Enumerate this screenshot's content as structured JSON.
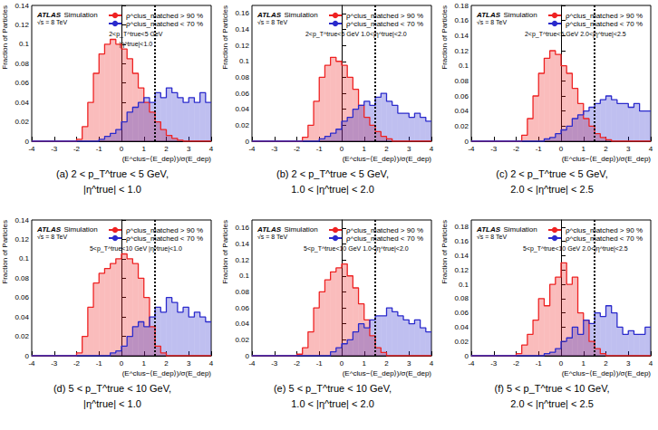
{
  "chart_data": [
    {
      "type": "histogram",
      "experiment": "ATLAS",
      "experiment_label": "Simulation",
      "energy": "√s = 8 TeV",
      "label": [
        "2<p_T^true<5 GeV",
        "|η^true|<1.0"
      ],
      "caption": [
        "(a) 2 < p_T^true < 5 GeV,",
        "|η^true| < 1.0"
      ],
      "x_label": "(E^clus−⟨E_dep⟩)/σ(E_dep)",
      "y_label": "Fraction of Particles",
      "cut": 1.5,
      "bins": [
        -4,
        -3.75,
        -3.5,
        -3.25,
        -3,
        -2.75,
        -2.5,
        -2.25,
        -2,
        -1.75,
        -1.5,
        -1.25,
        -1,
        -0.75,
        -0.5,
        -0.25,
        0,
        0.25,
        0.5,
        0.75,
        1,
        1.25,
        1.5,
        1.75,
        2,
        2.25,
        2.5,
        2.75,
        3,
        3.25,
        3.5,
        3.75,
        4
      ],
      "series": [
        {
          "name": "ρ^clus_matched > 90 %",
          "color": "#ee2222",
          "values": [
            0,
            0,
            0,
            0,
            0,
            0,
            0,
            0,
            0.002,
            0.015,
            0.04,
            0.07,
            0.09,
            0.1,
            0.105,
            0.1,
            0.095,
            0.085,
            0.07,
            0.055,
            0.04,
            0.03,
            0.02,
            0.012,
            0.006,
            0.003,
            0.001,
            0,
            0,
            0,
            0,
            0
          ]
        },
        {
          "name": "ρ^clus_matched < 70 %",
          "color": "#2a2acc",
          "values": [
            0,
            0,
            0,
            0,
            0,
            0,
            0,
            0,
            0,
            0,
            0,
            0,
            0.002,
            0.005,
            0.008,
            0.012,
            0.02,
            0.03,
            0.035,
            0.04,
            0.045,
            0.04,
            0.05,
            0.045,
            0.055,
            0.05,
            0.045,
            0.04,
            0.045,
            0.04,
            0.05,
            0.04
          ]
        }
      ],
      "xlim": [
        -4,
        4
      ],
      "xticks": [
        -4,
        -3,
        -2,
        -1,
        0,
        1,
        2,
        3,
        4
      ],
      "ylim": [
        0,
        0.14
      ],
      "yticks": [
        0,
        0.02,
        0.04,
        0.06,
        0.08,
        0.1,
        0.12,
        0.14
      ],
      "legend": "upper right"
    },
    {
      "type": "histogram",
      "experiment": "ATLAS",
      "experiment_label": "Simulation",
      "energy": "√s = 8 TeV",
      "label": [
        "2<p_T^true<5 GeV 1.0<|η^true|<2.0"
      ],
      "caption": [
        "(b) 2 < p_T^true < 5 GeV,",
        "1.0 < |η^true| < 2.0"
      ],
      "x_label": "(E^clus−⟨E_dep⟩)/σ(E_dep)",
      "y_label": "Fraction of Particles",
      "cut": 1.5,
      "bins": [
        -4,
        -3.75,
        -3.5,
        -3.25,
        -3,
        -2.75,
        -2.5,
        -2.25,
        -2,
        -1.75,
        -1.5,
        -1.25,
        -1,
        -0.75,
        -0.5,
        -0.25,
        0,
        0.25,
        0.5,
        0.75,
        1,
        1.25,
        1.5,
        1.75,
        2,
        2.25,
        2.5,
        2.75,
        3,
        3.25,
        3.5,
        3.75,
        4
      ],
      "series": [
        {
          "name": "ρ^clus_matched > 90 %",
          "color": "#ee2222",
          "values": [
            0,
            0,
            0,
            0,
            0,
            0,
            0,
            0,
            0,
            0.005,
            0.02,
            0.05,
            0.08,
            0.095,
            0.105,
            0.1,
            0.095,
            0.08,
            0.065,
            0.045,
            0.03,
            0.02,
            0.012,
            0.006,
            0.003,
            0,
            0,
            0,
            0,
            0,
            0,
            0
          ]
        },
        {
          "name": "ρ^clus_matched < 70 %",
          "color": "#2a2acc",
          "values": [
            0,
            0,
            0,
            0,
            0,
            0,
            0,
            0,
            0,
            0,
            0,
            0,
            0.003,
            0.006,
            0.01,
            0.015,
            0.025,
            0.03,
            0.04,
            0.045,
            0.05,
            0.045,
            0.055,
            0.06,
            0.05,
            0.045,
            0.035,
            0.035,
            0.03,
            0.035,
            0.03,
            0.025
          ]
        }
      ],
      "xlim": [
        -4,
        4
      ],
      "xticks": [
        -4,
        -3,
        -2,
        -1,
        0,
        1,
        2,
        3,
        4
      ],
      "ylim": [
        0,
        0.17
      ],
      "yticks": [
        0,
        0.02,
        0.04,
        0.06,
        0.08,
        0.1,
        0.12,
        0.14,
        0.16
      ],
      "legend": "upper right"
    },
    {
      "type": "histogram",
      "experiment": "ATLAS",
      "experiment_label": "Simulation",
      "energy": "√s = 8 TeV",
      "label": [
        "2<p_T^true<5 GeV 2.0<|η^true|<2.5"
      ],
      "caption": [
        "(c) 2 < p_T^true < 5 GeV,",
        "2.0 < |η^true| < 2.5"
      ],
      "x_label": "(E^clus−⟨E_dep⟩)/σ(E_dep)",
      "y_label": "Fraction of Particles",
      "cut": 1.5,
      "bins": [
        -4,
        -3.75,
        -3.5,
        -3.25,
        -3,
        -2.75,
        -2.5,
        -2.25,
        -2,
        -1.75,
        -1.5,
        -1.25,
        -1,
        -0.75,
        -0.5,
        -0.25,
        0,
        0.25,
        0.5,
        0.75,
        1,
        1.25,
        1.5,
        1.75,
        2,
        2.25,
        2.5,
        2.75,
        3,
        3.25,
        3.5,
        3.75,
        4
      ],
      "series": [
        {
          "name": "ρ^clus_matched > 90 %",
          "color": "#ee2222",
          "values": [
            0,
            0,
            0,
            0,
            0,
            0,
            0,
            0,
            0,
            0.008,
            0.03,
            0.06,
            0.09,
            0.11,
            0.12,
            0.115,
            0.1,
            0.09,
            0.07,
            0.05,
            0.03,
            0.02,
            0.01,
            0.005,
            0.002,
            0,
            0,
            0,
            0,
            0,
            0,
            0
          ]
        },
        {
          "name": "ρ^clus_matched < 70 %",
          "color": "#2a2acc",
          "values": [
            0,
            0,
            0,
            0,
            0,
            0,
            0,
            0,
            0,
            0,
            0,
            0,
            0,
            0.003,
            0.005,
            0.01,
            0.015,
            0.02,
            0.03,
            0.035,
            0.04,
            0.045,
            0.05,
            0.055,
            0.06,
            0.055,
            0.05,
            0.05,
            0.045,
            0.05,
            0.04,
            0.04
          ]
        }
      ],
      "xlim": [
        -4,
        4
      ],
      "xticks": [
        -4,
        -3,
        -2,
        -1,
        0,
        1,
        2,
        3,
        4
      ],
      "ylim": [
        0,
        0.18
      ],
      "yticks": [
        0,
        0.02,
        0.04,
        0.06,
        0.08,
        0.1,
        0.12,
        0.14,
        0.16,
        0.18
      ],
      "legend": "upper right"
    },
    {
      "type": "histogram",
      "experiment": "ATLAS",
      "experiment_label": "Simulation",
      "energy": "√s = 8 TeV",
      "label": [
        "5<p_T^true<10 GeV |η^true|<1.0"
      ],
      "caption": [
        "(d) 5 < p_T^true < 10 GeV,",
        "|η^true| < 1.0"
      ],
      "x_label": "(E^clus−⟨E_dep⟩)/σ(E_dep)",
      "y_label": "Fraction of Particles",
      "cut": 1.5,
      "bins": [
        -4,
        -3.75,
        -3.5,
        -3.25,
        -3,
        -2.75,
        -2.5,
        -2.25,
        -2,
        -1.75,
        -1.5,
        -1.25,
        -1,
        -0.75,
        -0.5,
        -0.25,
        0,
        0.25,
        0.5,
        0.75,
        1,
        1.25,
        1.5,
        1.75,
        2,
        2.25,
        2.5,
        2.75,
        3,
        3.25,
        3.5,
        3.75,
        4
      ],
      "series": [
        {
          "name": "ρ^clus_matched > 90 %",
          "color": "#ee2222",
          "values": [
            0,
            0,
            0,
            0,
            0,
            0,
            0,
            0,
            0.003,
            0.02,
            0.05,
            0.075,
            0.085,
            0.09,
            0.095,
            0.1,
            0.105,
            0.1,
            0.095,
            0.08,
            0.06,
            0.03,
            0.01,
            0.003,
            0,
            0,
            0,
            0,
            0,
            0,
            0,
            0
          ]
        },
        {
          "name": "ρ^clus_matched < 70 %",
          "color": "#2a2acc",
          "values": [
            0,
            0,
            0,
            0,
            0,
            0,
            0,
            0,
            0,
            0,
            0,
            0,
            0,
            0,
            0.003,
            0.005,
            0.01,
            0.02,
            0.03,
            0.035,
            0.03,
            0.04,
            0.05,
            0.045,
            0.06,
            0.055,
            0.045,
            0.05,
            0.04,
            0.045,
            0.04,
            0.035
          ]
        }
      ],
      "xlim": [
        -4,
        4
      ],
      "xticks": [
        -4,
        -3,
        -2,
        -1,
        0,
        1,
        2,
        3,
        4
      ],
      "ylim": [
        0,
        0.14
      ],
      "yticks": [
        0,
        0.02,
        0.04,
        0.06,
        0.08,
        0.1,
        0.12,
        0.14
      ],
      "legend": "upper right"
    },
    {
      "type": "histogram",
      "experiment": "ATLAS",
      "experiment_label": "Simulation",
      "energy": "√s = 8 TeV",
      "label": [
        "5<p_T^true<10 GeV 1.0<|η^true|<2.0"
      ],
      "caption": [
        "(e) 5 < p_T^true < 10 GeV,",
        "1.0 < |η^true| < 2.0"
      ],
      "x_label": "(E^clus−⟨E_dep⟩)/σ(E_dep)",
      "y_label": "Fraction of Particles",
      "cut": 1.5,
      "bins": [
        -4,
        -3.75,
        -3.5,
        -3.25,
        -3,
        -2.75,
        -2.5,
        -2.25,
        -2,
        -1.75,
        -1.5,
        -1.25,
        -1,
        -0.75,
        -0.5,
        -0.25,
        0,
        0.25,
        0.5,
        0.75,
        1,
        1.25,
        1.5,
        1.75,
        2,
        2.25,
        2.5,
        2.75,
        3,
        3.25,
        3.5,
        3.75,
        4
      ],
      "series": [
        {
          "name": "ρ^clus_matched > 90 %",
          "color": "#ee2222",
          "values": [
            0,
            0,
            0,
            0,
            0,
            0,
            0,
            0,
            0.002,
            0.01,
            0.03,
            0.06,
            0.08,
            0.095,
            0.105,
            0.11,
            0.115,
            0.1,
            0.085,
            0.065,
            0.045,
            0.025,
            0.01,
            0.004,
            0,
            0,
            0,
            0,
            0,
            0,
            0,
            0
          ]
        },
        {
          "name": "ρ^clus_matched < 70 %",
          "color": "#2a2acc",
          "values": [
            0,
            0,
            0,
            0,
            0,
            0,
            0,
            0,
            0,
            0,
            0,
            0,
            0,
            0,
            0.005,
            0.01,
            0.015,
            0.02,
            0.03,
            0.04,
            0.035,
            0.045,
            0.05,
            0.05,
            0.06,
            0.055,
            0.05,
            0.045,
            0.04,
            0.045,
            0.035,
            0.03
          ]
        }
      ],
      "xlim": [
        -4,
        4
      ],
      "xticks": [
        -4,
        -3,
        -2,
        -1,
        0,
        1,
        2,
        3,
        4
      ],
      "ylim": [
        0,
        0.17
      ],
      "yticks": [
        0,
        0.02,
        0.04,
        0.06,
        0.08,
        0.1,
        0.12,
        0.14,
        0.16
      ],
      "legend": "upper right"
    },
    {
      "type": "histogram",
      "experiment": "ATLAS",
      "experiment_label": "Simulation",
      "energy": "√s = 8 TeV",
      "label": [
        "5<p_T^true<10 GeV 2.0<|η^true|<2.5"
      ],
      "caption": [
        "(f) 5 < p_T^true < 10 GeV,",
        "2.0 < |η^true| < 2.5"
      ],
      "x_label": "(E^clus−⟨E_dep⟩)/σ(E_dep)",
      "y_label": "Fraction of Particles",
      "cut": 1.5,
      "bins": [
        -4,
        -3.75,
        -3.5,
        -3.25,
        -3,
        -2.75,
        -2.5,
        -2.25,
        -2,
        -1.75,
        -1.5,
        -1.25,
        -1,
        -0.75,
        -0.5,
        -0.25,
        0,
        0.25,
        0.5,
        0.75,
        1,
        1.25,
        1.5,
        1.75,
        2,
        2.25,
        2.5,
        2.75,
        3,
        3.25,
        3.5,
        3.75,
        4
      ],
      "series": [
        {
          "name": "ρ^clus_matched > 90 %",
          "color": "#ee2222",
          "values": [
            0,
            0,
            0,
            0,
            0,
            0,
            0,
            0,
            0.003,
            0.015,
            0.03,
            0.05,
            0.08,
            0.07,
            0.1,
            0.11,
            0.13,
            0.1,
            0.11,
            0.06,
            0.05,
            0.02,
            0.01,
            0.003,
            0,
            0,
            0,
            0,
            0,
            0,
            0,
            0
          ]
        },
        {
          "name": "ρ^clus_matched < 70 %",
          "color": "#2a2acc",
          "values": [
            0,
            0,
            0,
            0,
            0,
            0,
            0,
            0,
            0,
            0,
            0,
            0,
            0,
            0.003,
            0.005,
            0.01,
            0.02,
            0.025,
            0.04,
            0.03,
            0.05,
            0.045,
            0.06,
            0.055,
            0.07,
            0.06,
            0.04,
            0.03,
            0.035,
            0.03,
            0.03,
            0.04
          ]
        }
      ],
      "xlim": [
        -4,
        4
      ],
      "xticks": [
        -4,
        -3,
        -2,
        -1,
        0,
        1,
        2,
        3,
        4
      ],
      "ylim": [
        0,
        0.19
      ],
      "yticks": [
        0,
        0.02,
        0.04,
        0.06,
        0.08,
        0.1,
        0.12,
        0.14,
        0.16,
        0.18
      ],
      "legend": "upper right"
    }
  ]
}
